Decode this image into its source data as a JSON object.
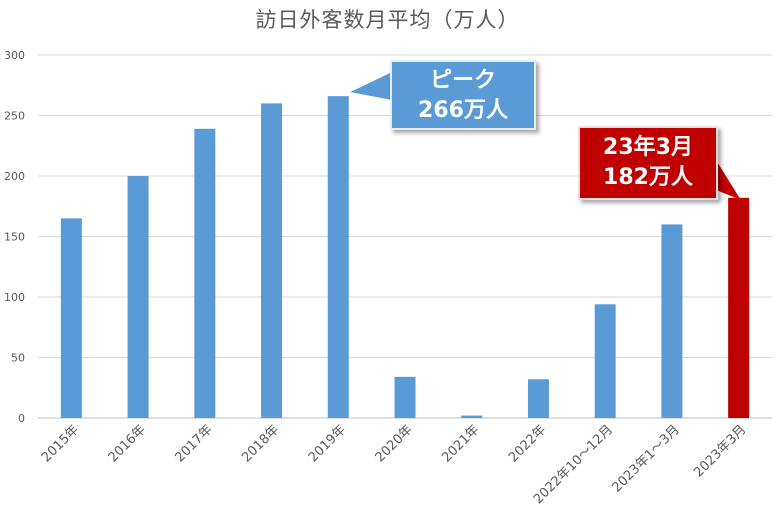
{
  "chart_data": {
    "type": "bar",
    "title": "訪日外客数月平均（万人）",
    "categories": [
      "2015年",
      "2016年",
      "2017年",
      "2018年",
      "2019年",
      "2020年",
      "2021年",
      "2022年",
      "2022年10～12月",
      "2023年1～3月",
      "2023年3月"
    ],
    "values": [
      165,
      200,
      239,
      260,
      266,
      34,
      2,
      32,
      94,
      160,
      182
    ],
    "ylim": [
      0,
      300
    ],
    "yticks": [
      "0",
      "50",
      "100",
      "150",
      "200",
      "250",
      "300"
    ],
    "grid": true,
    "colors": {
      "default": "#5b9bd5",
      "highlight": "#c00000"
    },
    "highlight_index": 10,
    "annotations": [
      {
        "target_index": 4,
        "line1": "ピーク",
        "line2": "266万人",
        "color": "#5b9bd5"
      },
      {
        "target_index": 10,
        "line1": "23年3月",
        "line2": "182万人",
        "color": "#c00000"
      }
    ]
  }
}
